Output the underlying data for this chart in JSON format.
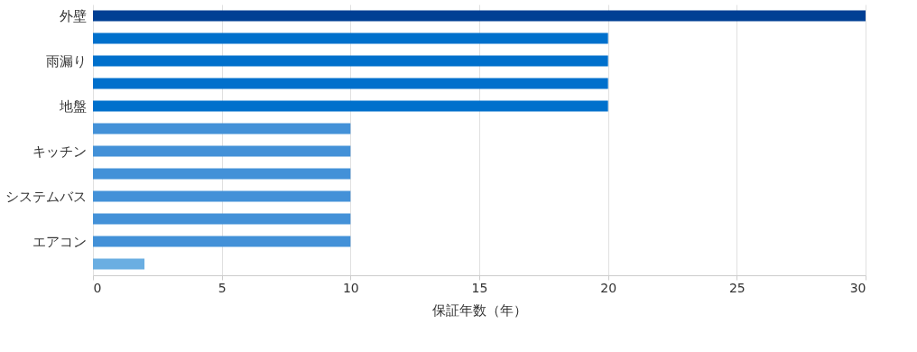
{
  "chart_data": {
    "type": "bar",
    "orientation": "horizontal",
    "xlabel": "保証年数（年）",
    "categories": [
      "外壁",
      null,
      "雨漏り",
      null,
      "地盤",
      null,
      "キッチン",
      null,
      "システムバス",
      null,
      "エアコン",
      null
    ],
    "values": [
      30,
      20,
      20,
      20,
      20,
      10,
      10,
      10,
      10,
      10,
      10,
      2
    ],
    "colors": [
      "#003f94",
      "#0070cc",
      "#0070cc",
      "#0070cc",
      "#0070cc",
      "#4391d8",
      "#4391d8",
      "#4391d8",
      "#4391d8",
      "#4391d8",
      "#4391d8",
      "#6aaee2"
    ],
    "xlim": [
      0,
      30
    ],
    "xticks": [
      0,
      5,
      10,
      15,
      20,
      25,
      30
    ],
    "grid": "x"
  }
}
